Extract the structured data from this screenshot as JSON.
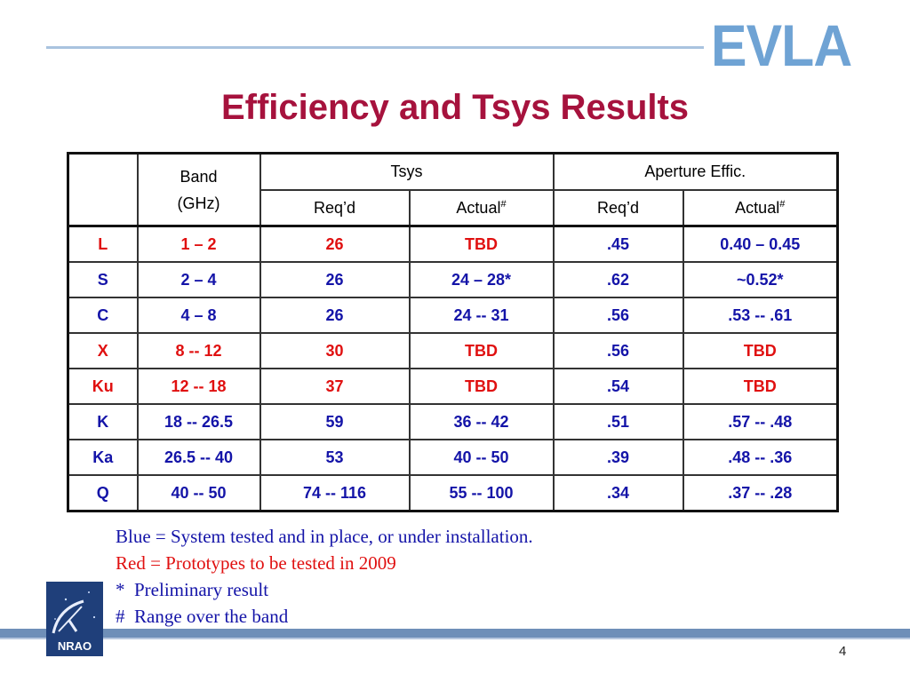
{
  "header": {
    "logo_text": "EVLA",
    "title": "Efficiency and Tsys Results",
    "colors": {
      "title": "#a6123d",
      "logo": "#6fa3d4",
      "rule": "#a9c3df"
    }
  },
  "table": {
    "header": {
      "band": "Band",
      "band_unit": "(GHz)",
      "tsys": "Tsys",
      "aperture": "Aperture Effic.",
      "reqd": "Req’d",
      "actual": "Actual",
      "actual_mark": "#"
    },
    "rows": [
      {
        "name": "L",
        "band": "1 – 2",
        "tsys_req": "26",
        "tsys_act": "TBD",
        "eff_req": ".45",
        "eff_act": "0.40 – 0.45"
      },
      {
        "name": "S",
        "band": "2 – 4",
        "tsys_req": "26",
        "tsys_act": "24 – 28*",
        "eff_req": ".62",
        "eff_act": "~0.52*"
      },
      {
        "name": "C",
        "band": "4 – 8",
        "tsys_req": "26",
        "tsys_act": "24 -- 31",
        "eff_req": ".56",
        "eff_act": ".53 -- .61"
      },
      {
        "name": "X",
        "band": "8 -- 12",
        "tsys_req": "30",
        "tsys_act": "TBD",
        "eff_req": ".56",
        "eff_act": "TBD"
      },
      {
        "name": "Ku",
        "band": "12 -- 18",
        "tsys_req": "37",
        "tsys_act": "TBD",
        "eff_req": ".54",
        "eff_act": "TBD"
      },
      {
        "name": "K",
        "band": "18 -- 26.5",
        "tsys_req": "59",
        "tsys_act": "36 -- 42",
        "eff_req": ".51",
        "eff_act": ".57 -- .48"
      },
      {
        "name": "Ka",
        "band": "26.5 -- 40",
        "tsys_req": "53",
        "tsys_act": "40 -- 50",
        "eff_req": ".39",
        "eff_act": ".48 -- .36"
      },
      {
        "name": "Q",
        "band": "40 -- 50",
        "tsys_req": "74 -- 116",
        "tsys_act": "55 -- 100",
        "eff_req": ".34",
        "eff_act": ".37 -- .28"
      }
    ],
    "colors": {
      "blue": "#1414a8",
      "red": "#e01010"
    }
  },
  "legend": {
    "blue_line": "Blue = System tested and in place, or under installation.",
    "red_line": "Red = Prototypes to be tested in 2009",
    "star_line": "*  Preliminary result",
    "hash_line": "#  Range over the band"
  },
  "footer": {
    "org_logo_text": "NRAO",
    "page_number": "4"
  }
}
